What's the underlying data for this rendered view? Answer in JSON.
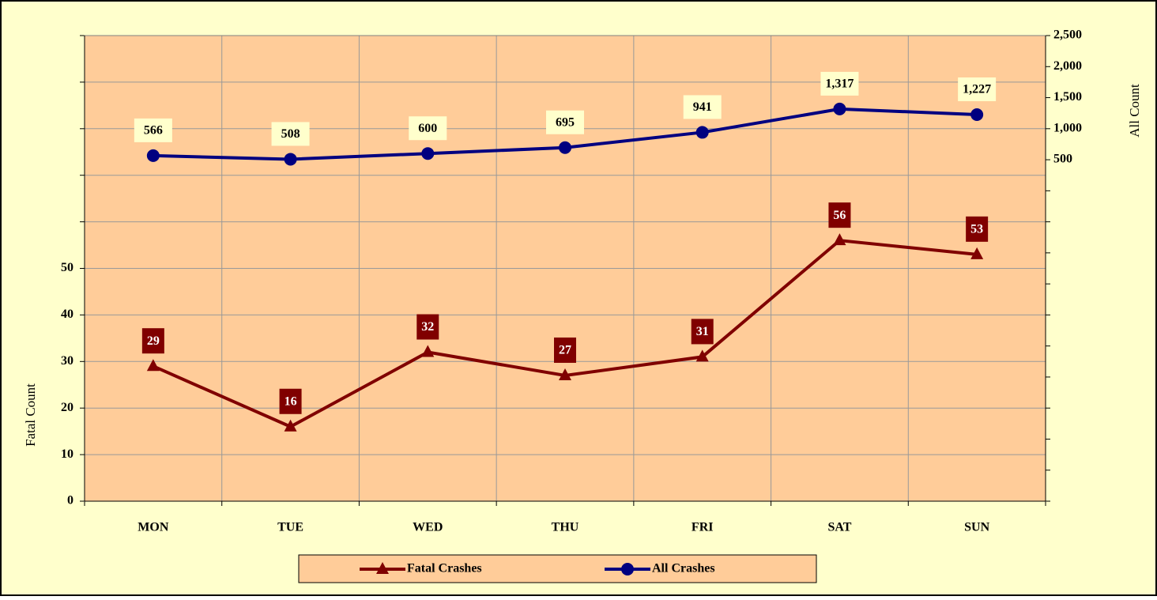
{
  "chart_data": {
    "type": "line",
    "categories": [
      "MON",
      "TUE",
      "WED",
      "THU",
      "FRI",
      "SAT",
      "SUN"
    ],
    "series": [
      {
        "name": "Fatal Crashes",
        "color": "#800000",
        "marker": "triangle",
        "values": [
          29,
          16,
          32,
          27,
          31,
          56,
          53
        ]
      },
      {
        "name": "All Crashes",
        "color": "#000080",
        "marker": "circle",
        "axis": "y2",
        "values": [
          566,
          508,
          600,
          695,
          941,
          1317,
          1227
        ],
        "value_labels": [
          "566",
          "508",
          "600",
          "695",
          "941",
          "1,317",
          "1,227"
        ]
      }
    ],
    "ylabel": "Fatal Count",
    "y2label": "All Count",
    "ylim": [
      0,
      100
    ],
    "yticks": [
      0,
      10,
      20,
      30,
      40,
      50,
      {
        "value": 60,
        "label": null
      },
      {
        "value": 70,
        "label": null
      },
      {
        "value": 80,
        "label": null
      },
      {
        "value": 90,
        "label": null
      },
      {
        "value": 100,
        "label": null
      }
    ],
    "y2lim": [
      -5000,
      2500
    ],
    "y2ticks": [
      {
        "value": -5000,
        "label": null
      },
      {
        "value": -4500,
        "label": null
      },
      {
        "value": -4000,
        "label": null
      },
      {
        "value": -3500,
        "label": null
      },
      {
        "value": -3000,
        "label": null
      },
      {
        "value": -2500,
        "label": null
      },
      {
        "value": -2000,
        "label": null
      },
      {
        "value": -1500,
        "label": null
      },
      {
        "value": -1000,
        "label": null
      },
      {
        "value": -500,
        "label": null
      },
      {
        "value": 0,
        "label": null
      },
      500,
      {
        "value": 1000,
        "label": "1,000"
      },
      {
        "value": 1500,
        "label": "1,500"
      },
      {
        "value": 2000,
        "label": "2,000"
      },
      {
        "value": 2500,
        "label": "2,500"
      }
    ],
    "grid": true,
    "legend": "bottom"
  }
}
